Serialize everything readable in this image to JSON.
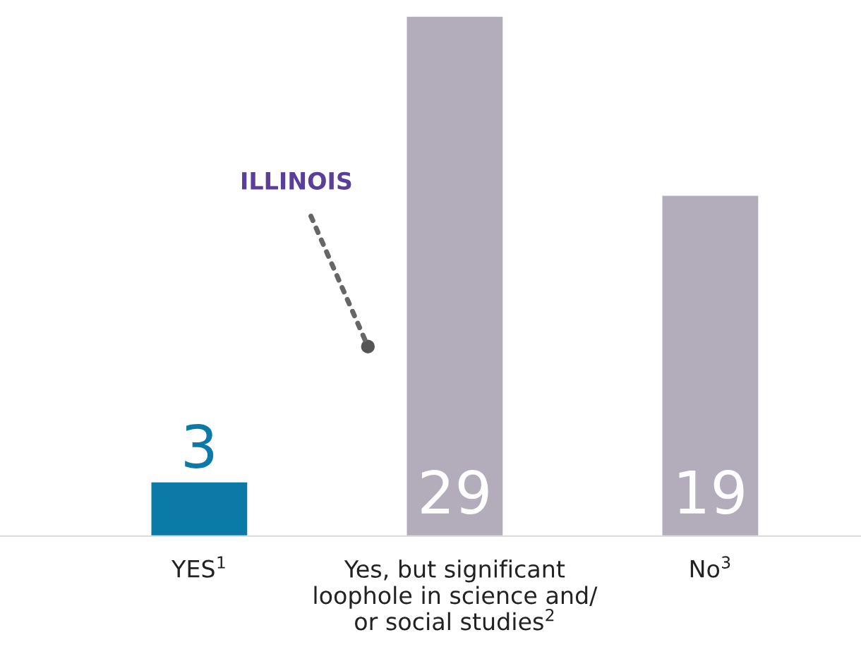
{
  "chart_data": {
    "type": "bar",
    "categories": [
      "YES$^{1}$",
      "Yes, but significant\nloophole in science and/\nor social studies$^{2}$",
      "No$^{3}$"
    ],
    "values": [
      3,
      29,
      19
    ],
    "colors": [
      "#0b7aa6",
      "#b3acba",
      "#b3acba"
    ],
    "data_labels": true,
    "annotations": [
      "ILLINOIS"
    ],
    "grid": false,
    "legend": false
  }
}
